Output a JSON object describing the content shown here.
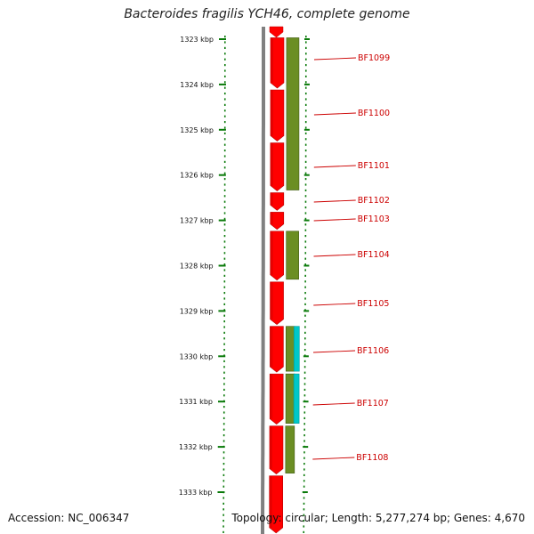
{
  "title": "Bacteroides fragilis YCH46, complete genome",
  "footer": {
    "accession": "Accession: NC_006347",
    "summary": "Topology: circular; Length: 5,277,274 bp; Genes: 4,670"
  },
  "ruler": {
    "unit": "kbp",
    "ticks": [
      {
        "kbp": 1323,
        "label": "1323 kbp"
      },
      {
        "kbp": 1324,
        "label": "1324 kbp"
      },
      {
        "kbp": 1325,
        "label": "1325 kbp"
      },
      {
        "kbp": 1326,
        "label": "1326 kbp"
      },
      {
        "kbp": 1327,
        "label": "1327 kbp"
      },
      {
        "kbp": 1328,
        "label": "1328 kbp"
      },
      {
        "kbp": 1329,
        "label": "1329 kbp"
      },
      {
        "kbp": 1330,
        "label": "1330 kbp"
      },
      {
        "kbp": 1331,
        "label": "1331 kbp"
      },
      {
        "kbp": 1332,
        "label": "1332 kbp"
      },
      {
        "kbp": 1333,
        "label": "1333 kbp"
      }
    ]
  },
  "colors": {
    "gene_fill": "#ff0000",
    "gene_edge": "#b80000",
    "cog_fill": "#6b8e23",
    "cog_edge": "#3f5a10",
    "cyan_fill": "#00c8c8",
    "backbone": "#808080",
    "tick_green": "#0a7a0a",
    "label_red": "#cc0000"
  },
  "genes": [
    {
      "label": "BF1099",
      "start": 1322.95,
      "end": 1324.08
    },
    {
      "label": "BF1100",
      "start": 1324.1,
      "end": 1325.25
    },
    {
      "label": "BF1101",
      "start": 1325.27,
      "end": 1326.35
    },
    {
      "label": "BF1102",
      "start": 1326.37,
      "end": 1326.78
    },
    {
      "label": "BF1103",
      "start": 1326.8,
      "end": 1327.2
    },
    {
      "label": "BF1104",
      "start": 1327.22,
      "end": 1328.32
    },
    {
      "label": "BF1105",
      "start": 1328.34,
      "end": 1329.3
    },
    {
      "label": "BF1106",
      "start": 1329.32,
      "end": 1330.35
    },
    {
      "label": "BF1107",
      "start": 1330.37,
      "end": 1331.5
    },
    {
      "label": "BF1108",
      "start": 1331.52,
      "end": 1332.6
    },
    {
      "label": "",
      "start": 1332.62,
      "end": 1333.9
    }
  ],
  "cog_blocks": [
    {
      "type": "olive",
      "start": 1322.95,
      "end": 1326.35
    },
    {
      "type": "olive",
      "start": 1327.22,
      "end": 1328.32
    },
    {
      "type": "olive",
      "start": 1329.32,
      "end": 1330.35
    },
    {
      "type": "cyan",
      "start": 1329.32,
      "end": 1330.35
    },
    {
      "type": "olive",
      "start": 1330.37,
      "end": 1331.5
    },
    {
      "type": "cyan",
      "start": 1330.37,
      "end": 1331.5
    },
    {
      "type": "olive",
      "start": 1331.52,
      "end": 1332.6
    }
  ]
}
